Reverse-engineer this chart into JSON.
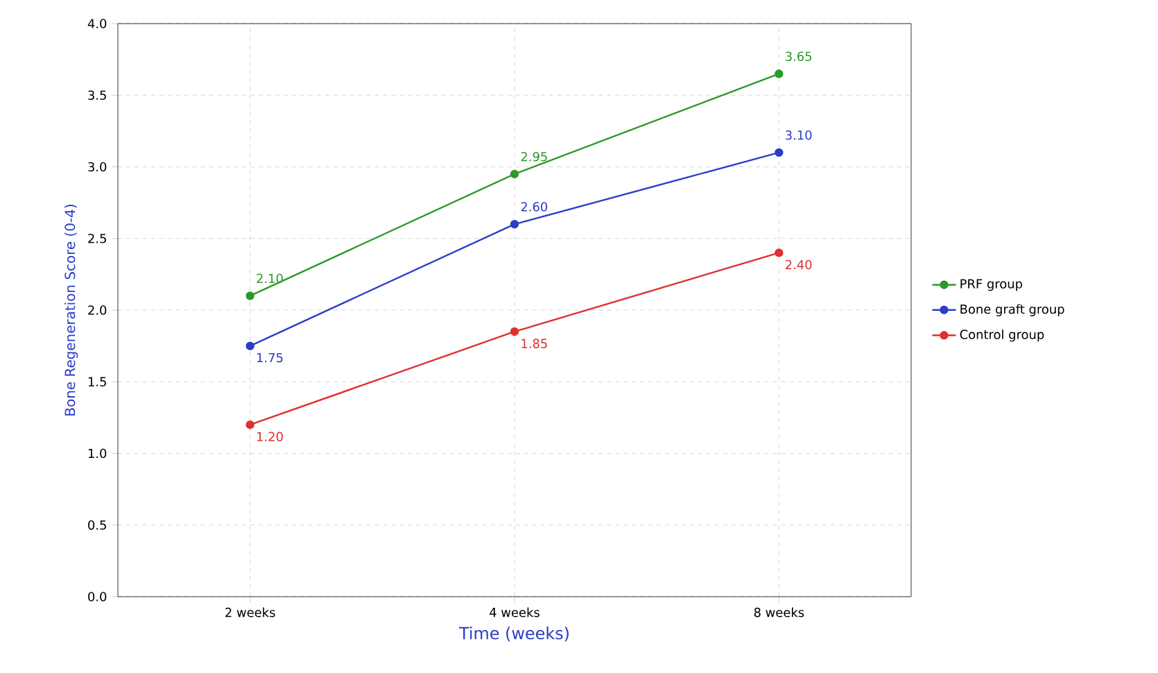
{
  "chart_data": {
    "type": "line",
    "xlabel": "Time (weeks)",
    "ylabel": "Bone Regeneration Score (0-4)",
    "categories": [
      "2 weeks",
      "4 weeks",
      "8 weeks"
    ],
    "series": [
      {
        "name": "PRF group",
        "color": "#2a9a2a",
        "values": [
          2.1,
          2.95,
          3.65
        ],
        "value_labels": [
          "2.10",
          "2.95",
          "3.65"
        ]
      },
      {
        "name": "Bone graft group",
        "color": "#2a3ec8",
        "values": [
          1.75,
          2.6,
          3.1
        ],
        "value_labels": [
          "1.75",
          "2.60",
          "3.10"
        ]
      },
      {
        "name": "Control group",
        "color": "#e03030",
        "values": [
          1.2,
          1.85,
          2.4
        ],
        "value_labels": [
          "1.20",
          "1.85",
          "2.40"
        ]
      }
    ],
    "ylim": [
      0,
      4
    ],
    "yticks": [
      {
        "value": 0,
        "label": "0.0"
      },
      {
        "value": 0.5,
        "label": "0.5"
      },
      {
        "value": 1,
        "label": "1.0"
      },
      {
        "value": 1.5,
        "label": "1.5"
      },
      {
        "value": 2,
        "label": "2.0"
      },
      {
        "value": 2.5,
        "label": "2.5"
      },
      {
        "value": 3,
        "label": "3.0"
      },
      {
        "value": 3.5,
        "label": "3.5"
      },
      {
        "value": 4,
        "label": "4.0"
      }
    ],
    "grid": true,
    "legend": "right",
    "marker": "circle",
    "line_style": "solid"
  }
}
